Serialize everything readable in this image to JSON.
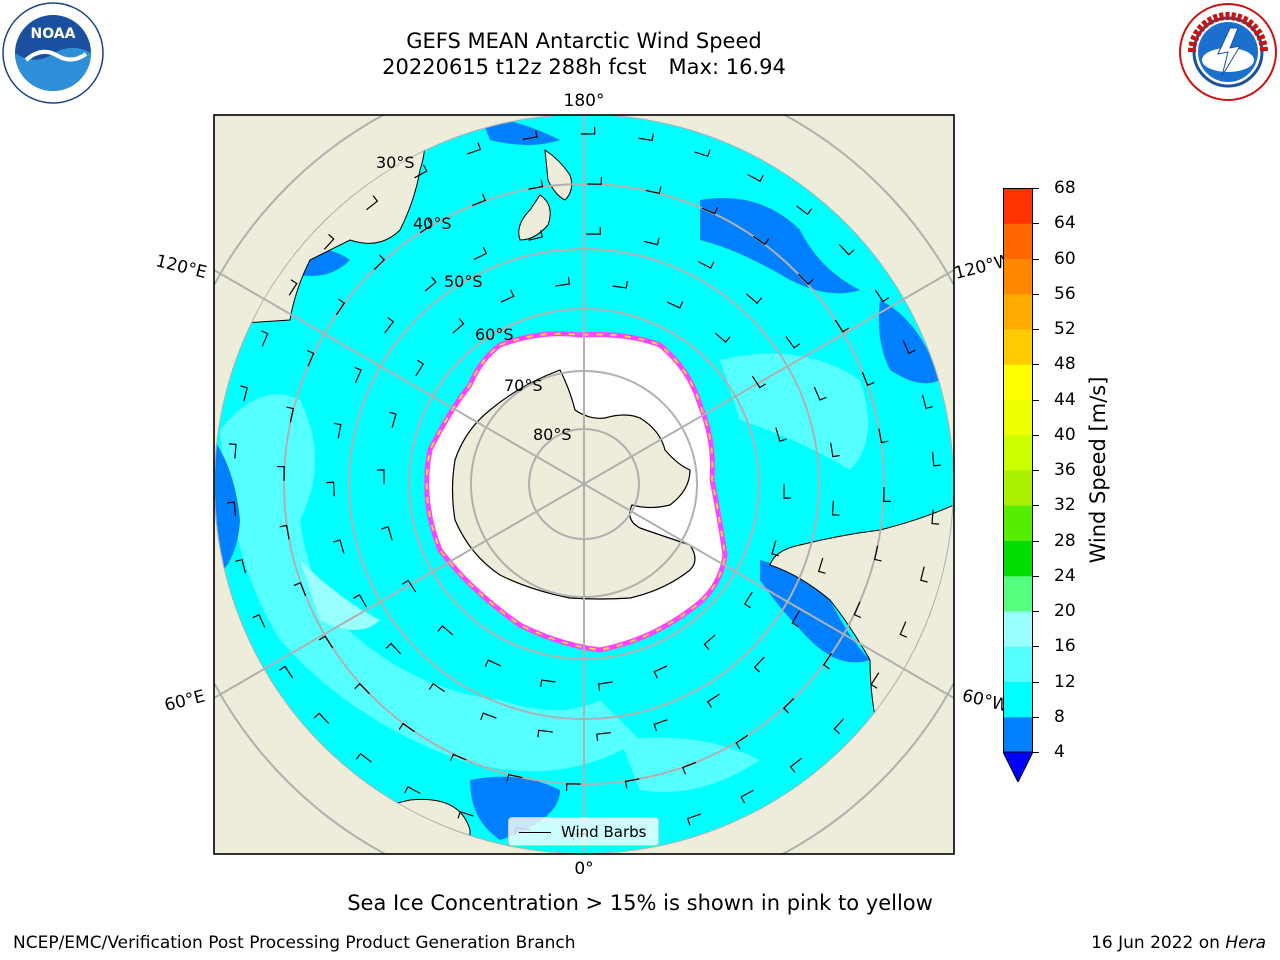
{
  "title": {
    "line1": "GEFS MEAN Antarctic Wind Speed",
    "line2_run": "20220615 t12z 288h fcst",
    "line2_max": "Max: 16.94"
  },
  "logos": {
    "left": "noaa-logo",
    "left_text": "NOAA",
    "right": "nws-logo",
    "right_text": "NATIONAL WEATHER SERVICE"
  },
  "map": {
    "projection": "south-polar-stereographic",
    "longitude_labels": {
      "top": "180°",
      "bottom": "0°",
      "left_upper": "120°E",
      "left_lower": "60°E",
      "right_upper": "120°W",
      "right_lower": "60°W"
    },
    "latitude_labels": [
      "30°S",
      "40°S",
      "50°S",
      "60°S",
      "70°S",
      "80°S"
    ],
    "colors": {
      "ocean_8_12": "#00ffff",
      "ocean_12_16": "#55ffff",
      "ocean_16_20": "#99ffff",
      "ocean_4_8": "#0080ff",
      "land": "#eeecda",
      "sea_ice": "#ffffff",
      "ice_edge_pink": "#ff44ff",
      "ice_edge_yellow": "#ffcc44",
      "gridline": "#b0b0b0"
    }
  },
  "colorbar": {
    "label": "Wind Speed [m/s]",
    "ticks": [
      "4",
      "8",
      "12",
      "16",
      "20",
      "24",
      "28",
      "32",
      "36",
      "40",
      "44",
      "48",
      "52",
      "56",
      "60",
      "64",
      "68"
    ],
    "colors": [
      "#0080ff",
      "#00ffff",
      "#55ffff",
      "#99ffff",
      "#55ff7f",
      "#00dd00",
      "#55ee00",
      "#aaee00",
      "#ccff00",
      "#eeff00",
      "#ffff00",
      "#ffcc00",
      "#ffaa00",
      "#ff8800",
      "#ff6600",
      "#ff3300"
    ],
    "extend_color": "#0000ff"
  },
  "legend": {
    "label": "Wind Barbs"
  },
  "caption": "Sea Ice Concentration > 15% is shown in pink to yellow",
  "footer": {
    "left": "NCEP/EMC/Verification Post Processing Product Generation Branch",
    "right_date": "16 Jun 2022 on",
    "right_host": "Hera"
  }
}
